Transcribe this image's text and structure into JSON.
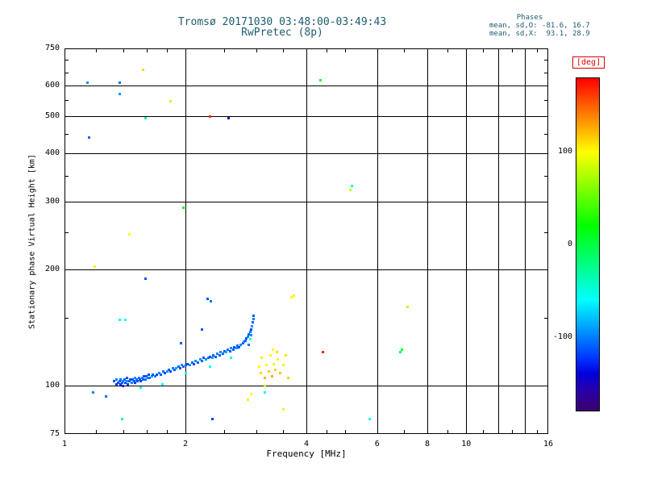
{
  "title": {
    "line1": "Tromsø 20171030 03:48:00-03:49:43",
    "line2": "RwPretec (8p)"
  },
  "stats": {
    "header": "Phases",
    "line1": "mean, sd,O: -81.6, 16.7",
    "line2": "mean, sd,X:  93.1, 28.9"
  },
  "colors": {
    "title_text": "#1f5b6e",
    "axis_text": "#000000",
    "deg_label": "#e00000"
  },
  "chart_data": {
    "type": "scatter",
    "title": "Tromsø 20171030 03:48:00-03:49:43 RwPretec (8p)",
    "xlabel": "Frequency [MHz]",
    "ylabel": "Stationary phase Virtual Height [km]",
    "x_scale": "log",
    "y_scale": "log",
    "xlim": [
      1,
      16
    ],
    "ylim": [
      75,
      750
    ],
    "x_ticks_labeled": [
      1,
      2,
      4,
      6,
      8,
      10,
      16
    ],
    "x_gridlines": [
      2,
      4,
      6,
      8,
      10,
      12,
      14
    ],
    "x_minor_ticks": [
      1.2,
      1.4,
      1.6,
      1.8,
      2.5,
      3,
      3.5,
      4.5,
      5,
      7,
      9,
      11,
      13,
      15
    ],
    "y_ticks_labeled": [
      750,
      600,
      500,
      400,
      300,
      200,
      100,
      75
    ],
    "y_gridlines": [
      600,
      500,
      400,
      300,
      200,
      100
    ],
    "y_minor_ticks": [
      700,
      650,
      550,
      450,
      350,
      250,
      150
    ],
    "grid": true,
    "legend": false,
    "colorbar": {
      "label": "[deg]",
      "ticks": [
        100,
        0,
        -100
      ],
      "range": [
        -180,
        180
      ],
      "position": "right"
    },
    "series_note": "points = [frequency_MHz, virtual_height_km, phase_deg]; phase mapped to rainbow colorbar",
    "points": [
      [
        1.33,
        103,
        -115
      ],
      [
        1.35,
        101,
        -120
      ],
      [
        1.35,
        104,
        -103
      ],
      [
        1.36,
        102,
        -118
      ],
      [
        1.37,
        103,
        -110
      ],
      [
        1.38,
        101,
        -124
      ],
      [
        1.38,
        104,
        -106
      ],
      [
        1.39,
        102,
        -115
      ],
      [
        1.4,
        103,
        -98
      ],
      [
        1.4,
        100,
        -126
      ],
      [
        1.41,
        104,
        -112
      ],
      [
        1.42,
        102,
        -118
      ],
      [
        1.43,
        103,
        -95
      ],
      [
        1.43,
        105,
        -113
      ],
      [
        1.44,
        101,
        -121
      ],
      [
        1.45,
        103,
        -107
      ],
      [
        1.46,
        104,
        -115
      ],
      [
        1.47,
        102,
        -99
      ],
      [
        1.48,
        104,
        -119
      ],
      [
        1.49,
        103,
        -109
      ],
      [
        1.5,
        105,
        -94
      ],
      [
        1.5,
        102,
        -123
      ],
      [
        1.51,
        104,
        -108
      ],
      [
        1.52,
        103,
        -117
      ],
      [
        1.53,
        105,
        -101
      ],
      [
        1.54,
        104,
        -113
      ],
      [
        1.55,
        103,
        -121
      ],
      [
        1.55,
        99,
        -62
      ],
      [
        1.56,
        105,
        -97
      ],
      [
        1.57,
        104,
        -111
      ],
      [
        1.58,
        106,
        -116
      ],
      [
        1.59,
        104,
        -104
      ],
      [
        1.6,
        106,
        -113
      ],
      [
        1.61,
        105,
        -99
      ],
      [
        1.62,
        107,
        -119
      ],
      [
        1.63,
        105,
        -107
      ],
      [
        1.65,
        106,
        -93
      ],
      [
        1.66,
        107,
        -112
      ],
      [
        1.68,
        106,
        -103
      ],
      [
        1.7,
        107,
        -116
      ],
      [
        1.72,
        108,
        -97
      ],
      [
        1.74,
        107,
        -111
      ],
      [
        1.75,
        101,
        -56
      ],
      [
        1.76,
        109,
        -105
      ],
      [
        1.78,
        108,
        -117
      ],
      [
        1.8,
        109,
        -93
      ],
      [
        1.82,
        110,
        -109
      ],
      [
        1.84,
        109,
        -119
      ],
      [
        1.86,
        111,
        -101
      ],
      [
        1.88,
        110,
        -113
      ],
      [
        1.9,
        111,
        -91
      ],
      [
        1.92,
        112,
        -107
      ],
      [
        1.94,
        111,
        -116
      ],
      [
        1.95,
        129,
        -109
      ],
      [
        1.96,
        113,
        -97
      ],
      [
        1.98,
        112,
        -111
      ],
      [
        2.0,
        113,
        -103
      ],
      [
        2.0,
        108,
        -58
      ],
      [
        2.02,
        114,
        -118
      ],
      [
        2.05,
        113,
        -95
      ],
      [
        2.08,
        115,
        -109
      ],
      [
        2.1,
        114,
        -115
      ],
      [
        2.12,
        116,
        -99
      ],
      [
        2.15,
        115,
        -111
      ],
      [
        2.18,
        117,
        -93
      ],
      [
        2.2,
        116,
        -107
      ],
      [
        2.22,
        118,
        -113
      ],
      [
        2.25,
        117,
        -97
      ],
      [
        2.28,
        118,
        -105
      ],
      [
        2.3,
        119,
        -117
      ],
      [
        2.3,
        112,
        -54
      ],
      [
        2.33,
        118,
        -91
      ],
      [
        2.35,
        120,
        -109
      ],
      [
        2.38,
        119,
        -115
      ],
      [
        2.4,
        121,
        -99
      ],
      [
        2.43,
        120,
        -111
      ],
      [
        2.45,
        122,
        -95
      ],
      [
        2.48,
        121,
        -107
      ],
      [
        2.5,
        123,
        -113
      ],
      [
        2.53,
        122,
        -89
      ],
      [
        2.55,
        124,
        -105
      ],
      [
        2.58,
        123,
        -115
      ],
      [
        2.6,
        125,
        -97
      ],
      [
        2.6,
        118,
        -52
      ],
      [
        2.63,
        124,
        -109
      ],
      [
        2.65,
        126,
        -113
      ],
      [
        2.68,
        125,
        -93
      ],
      [
        2.7,
        127,
        -107
      ],
      [
        2.72,
        126,
        -117
      ],
      [
        2.75,
        128,
        -99
      ],
      [
        2.78,
        129,
        -111
      ],
      [
        2.8,
        130,
        -95
      ],
      [
        2.82,
        131,
        -108
      ],
      [
        2.84,
        133,
        -114
      ],
      [
        2.86,
        134,
        -97
      ],
      [
        2.87,
        128,
        -105
      ],
      [
        2.88,
        136,
        -110
      ],
      [
        2.9,
        138,
        -103
      ],
      [
        2.9,
        132,
        -60
      ],
      [
        2.91,
        135,
        -95
      ],
      [
        2.92,
        140,
        -117
      ],
      [
        2.93,
        143,
        -91
      ],
      [
        2.94,
        146,
        -108
      ],
      [
        2.95,
        149,
        -99
      ],
      [
        2.96,
        152,
        -112
      ],
      [
        3.05,
        112,
        100
      ],
      [
        3.08,
        108,
        112
      ],
      [
        3.1,
        118,
        94
      ],
      [
        3.15,
        105,
        122
      ],
      [
        3.15,
        100,
        86
      ],
      [
        3.18,
        113,
        103
      ],
      [
        3.22,
        109,
        116
      ],
      [
        3.25,
        120,
        99
      ],
      [
        3.28,
        106,
        126
      ],
      [
        3.3,
        124,
        101
      ],
      [
        3.32,
        114,
        96
      ],
      [
        3.35,
        110,
        113
      ],
      [
        3.38,
        122,
        111
      ],
      [
        3.4,
        117,
        105
      ],
      [
        3.45,
        108,
        118
      ],
      [
        3.5,
        113,
        93
      ],
      [
        3.55,
        120,
        109
      ],
      [
        3.6,
        105,
        115
      ],
      [
        1.14,
        612,
        -95
      ],
      [
        1.37,
        612,
        -102
      ],
      [
        1.57,
        660,
        113
      ],
      [
        1.37,
        572,
        -92
      ],
      [
        1.84,
        548,
        82
      ],
      [
        1.59,
        495,
        -28
      ],
      [
        2.3,
        500,
        168
      ],
      [
        2.56,
        495,
        -152
      ],
      [
        4.33,
        620,
        2
      ],
      [
        1.15,
        441,
        -106
      ],
      [
        5.2,
        330,
        -55
      ],
      [
        5.15,
        322,
        86
      ],
      [
        1.98,
        289,
        12
      ],
      [
        1.45,
        247,
        101
      ],
      [
        1.19,
        204,
        106
      ],
      [
        1.59,
        190,
        -112
      ],
      [
        2.27,
        168,
        -114
      ],
      [
        2.31,
        166,
        -102
      ],
      [
        3.68,
        170,
        100
      ],
      [
        3.73,
        171,
        94
      ],
      [
        7.16,
        160,
        76
      ],
      [
        1.37,
        148,
        -62
      ],
      [
        1.42,
        148,
        -58
      ],
      [
        2.2,
        140,
        -112
      ],
      [
        4.39,
        122,
        170
      ],
      [
        6.84,
        122,
        -6
      ],
      [
        6.92,
        124,
        6
      ],
      [
        1.27,
        94,
        -105
      ],
      [
        1.18,
        96,
        -99
      ],
      [
        2.34,
        82,
        -118
      ],
      [
        1.39,
        82,
        -22
      ],
      [
        2.91,
        95,
        100
      ],
      [
        3.15,
        96,
        -55
      ],
      [
        2.86,
        92,
        104
      ],
      [
        3.51,
        87,
        92
      ],
      [
        5.75,
        82,
        -48
      ]
    ]
  }
}
